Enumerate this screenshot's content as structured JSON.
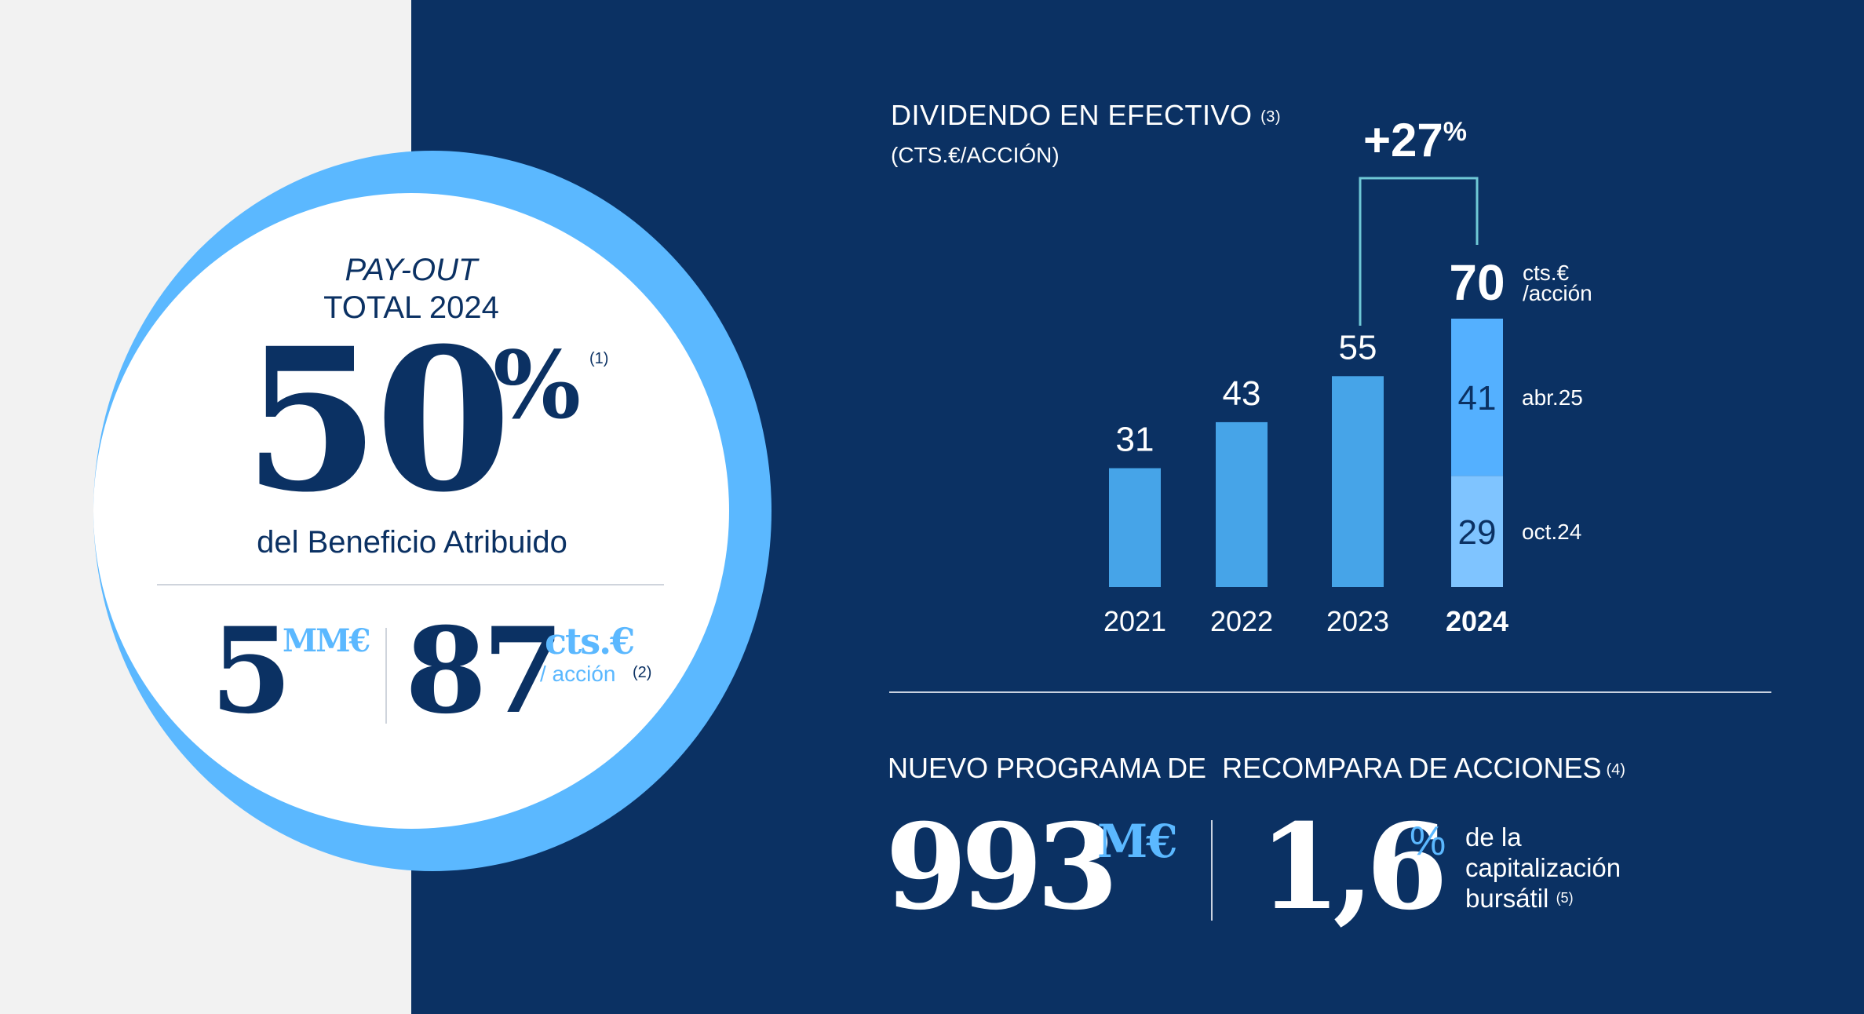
{
  "payout": {
    "title_italic": "PAY-OUT",
    "title": "TOTAL 2024",
    "value": "50",
    "unit": "%",
    "note": "(1)",
    "subtitle": "del Beneficio Atribuido",
    "total_value": "5",
    "total_unit": "MM€",
    "per_share_value": "87",
    "per_share_unit": "cts.€",
    "per_share_label": "/ acción",
    "per_share_note": "(2)"
  },
  "chart_data": {
    "type": "bar",
    "title": "DIVIDENDO EN EFECTIVO",
    "title_note": "(3)",
    "subtitle": "(CTS.€/ACCIÓN)",
    "categories": [
      "2021",
      "2022",
      "2023",
      "2024"
    ],
    "values": [
      31,
      43,
      55,
      70
    ],
    "ylim": [
      0,
      70
    ],
    "stacked_2024": [
      {
        "name": "oct.24",
        "value": 29,
        "color": "#7fc4ff"
      },
      {
        "name": "abr.25",
        "value": 41,
        "color": "#54b0ff"
      }
    ],
    "total_2024_label": "70",
    "total_2024_unit_line1": "cts.€",
    "total_2024_unit_line2": "/acción",
    "growth_label": "+27",
    "growth_unit": "%",
    "colors": {
      "bar": "#46a4e8",
      "bracket": "#6fc8d6",
      "text": "#ffffff",
      "dark_text": "#0b3163"
    }
  },
  "buyback": {
    "title": "NUEVO PROGRAMA DE  RECOMPARA DE ACCIONES",
    "title_note": "(4)",
    "amount": "993",
    "amount_unit": "M€",
    "pct": "1,6",
    "pct_unit": "%",
    "desc_line1": "de la",
    "desc_line2": "capitalización",
    "desc_line3": "bursátil",
    "desc_note": "(5)"
  },
  "colors": {
    "navy": "#0b3163",
    "accent": "#5bb8ff",
    "background": "#f2f2f2"
  }
}
